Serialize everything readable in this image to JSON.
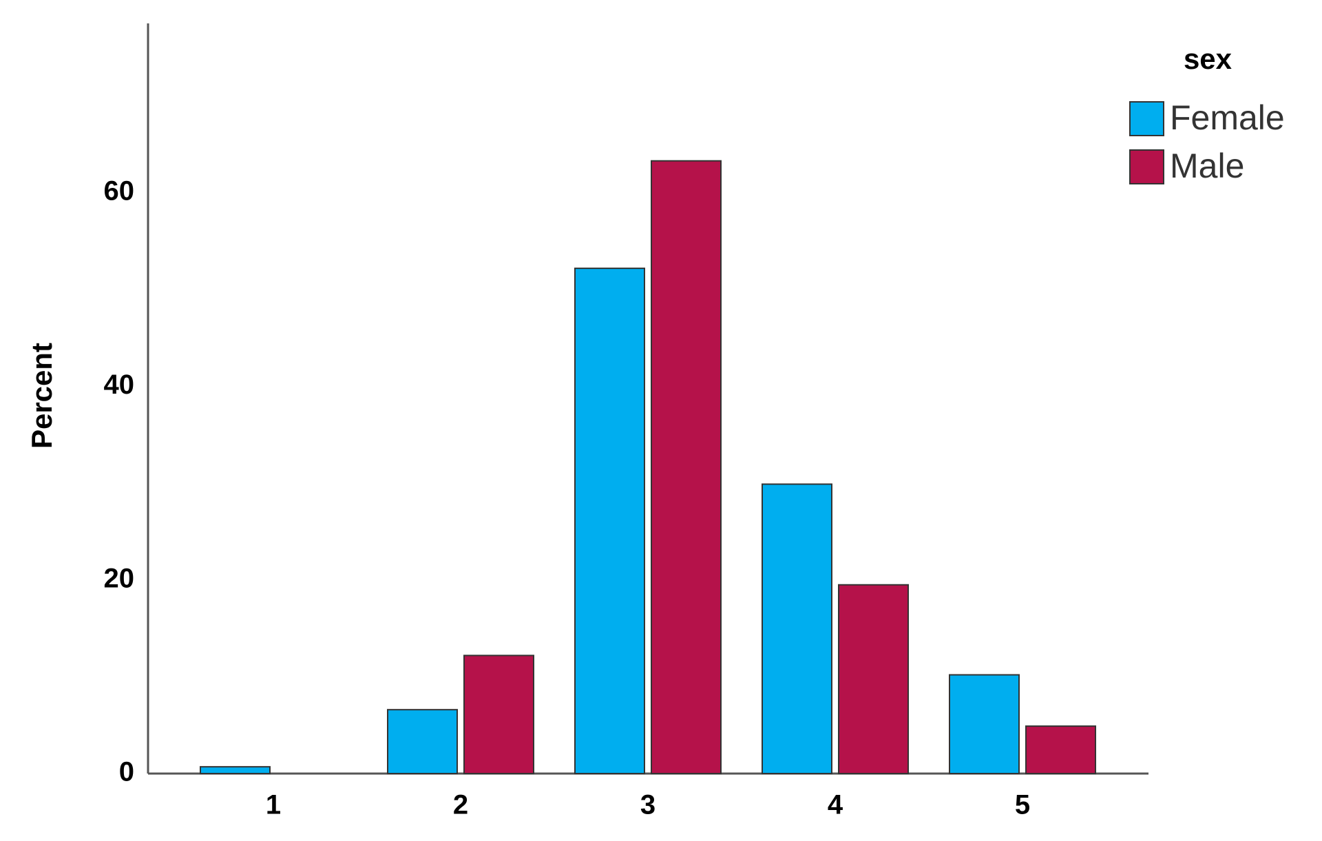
{
  "chart_data": {
    "type": "bar",
    "y_label": "Percent",
    "legend_title": "sex",
    "categories": [
      "1",
      "2",
      "3",
      "4",
      "5"
    ],
    "series": [
      {
        "name": "Female",
        "color": "#00aeef",
        "values": [
          0.7,
          6.6,
          52.2,
          29.9,
          10.2
        ]
      },
      {
        "name": "Male",
        "color": "#b5124a",
        "values": [
          0,
          12.2,
          63.3,
          19.5,
          4.9
        ]
      }
    ],
    "ylim": [
      0,
      77.5
    ],
    "yticks": [
      0,
      20,
      40,
      60
    ],
    "grid": false,
    "legend": "top-right"
  }
}
